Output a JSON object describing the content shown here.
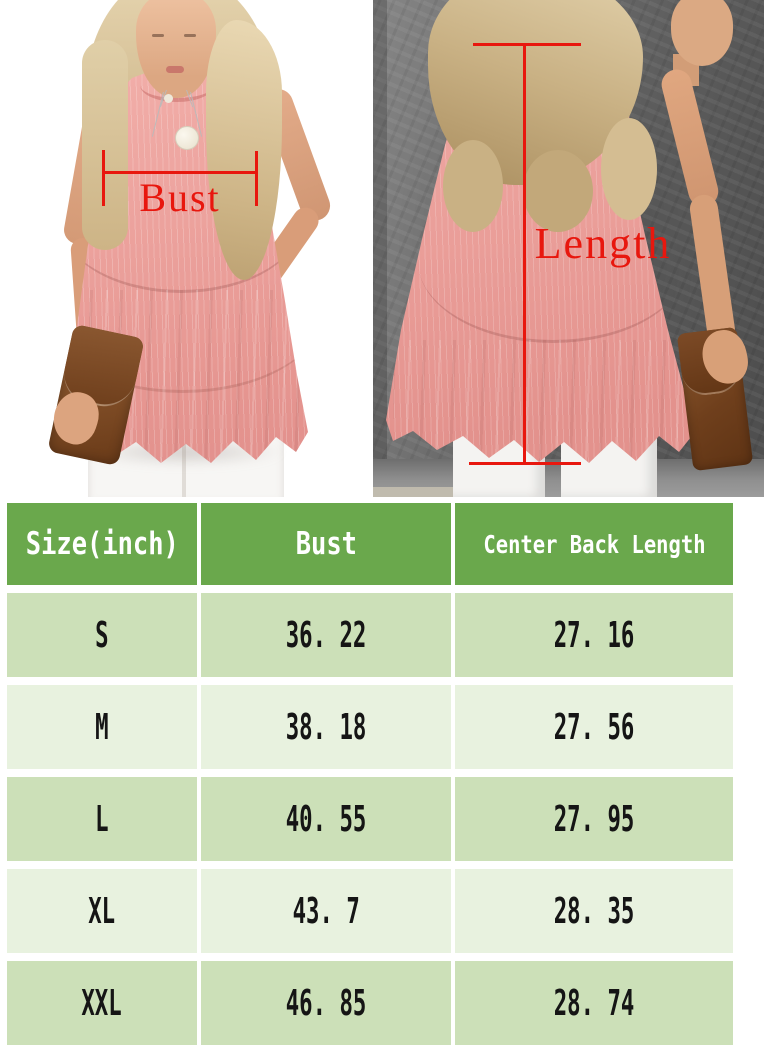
{
  "photos": {
    "front": {
      "description": "front view of model wearing pink sleeveless tiered ruffle tunic, holding brown leather clutch, white jeans",
      "annotation": "Bust"
    },
    "back": {
      "description": "back view of model against dark gray wall wearing pink sleeveless tiered ruffle tunic, holding brown leather clutch",
      "annotation": "Length"
    }
  },
  "chart_data": {
    "type": "table",
    "units": "inch",
    "columns": [
      "Size(inch)",
      "Bust",
      "Center Back Length"
    ],
    "rows": [
      {
        "size": "S",
        "bust": "36. 22",
        "center_back_length": "27. 16"
      },
      {
        "size": "M",
        "bust": "38. 18",
        "center_back_length": "27. 56"
      },
      {
        "size": "L",
        "bust": "40. 55",
        "center_back_length": "27. 95"
      },
      {
        "size": "XL",
        "bust": "43. 7",
        "center_back_length": "28. 35"
      },
      {
        "size": "XXL",
        "bust": "46. 85",
        "center_back_length": "28. 74"
      }
    ]
  },
  "colors": {
    "header_green": "#6aa84c",
    "row_green": "#cce0b8",
    "row_green_light": "#e8f2df",
    "header_text": "#ffffff",
    "cell_text": "#151515",
    "annotation_red": "#e8170e",
    "shirt_pink": "#eda49f",
    "wall_gray": "#5d5d5d"
  }
}
